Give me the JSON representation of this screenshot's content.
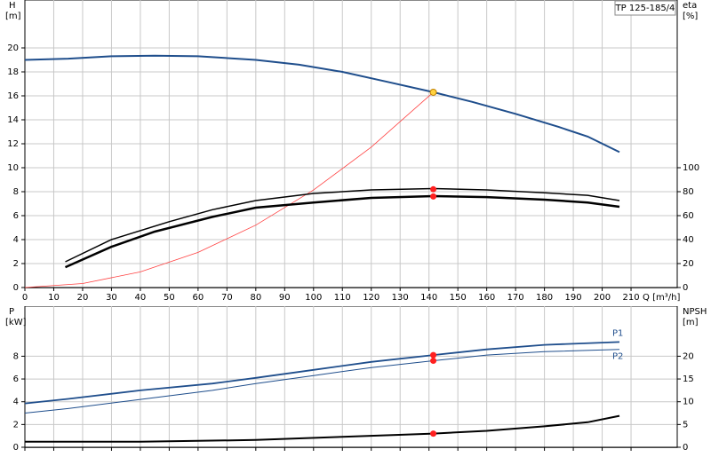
{
  "chart_data": [
    {
      "type": "line",
      "title": "TP 125-185/4",
      "ylabel": "H",
      "yunit": "[m]",
      "y2label": "eta",
      "y2unit": "[%]",
      "xlabel": "Q [m³/h]",
      "xlim": [
        0,
        226
      ],
      "xticks": [
        0,
        10,
        20,
        30,
        40,
        50,
        60,
        70,
        80,
        90,
        100,
        110,
        120,
        130,
        140,
        150,
        160,
        170,
        180,
        190,
        200,
        210
      ],
      "ylim": [
        0,
        24
      ],
      "yticks": [
        0,
        2,
        4,
        6,
        8,
        10,
        12,
        14,
        16,
        18,
        20
      ],
      "y2lim": [
        0,
        240
      ],
      "y2ticks": [
        0,
        20,
        40,
        60,
        80,
        100
      ],
      "grid": true,
      "xtick_labels": true,
      "series": [
        {
          "color": "#1f4e8c",
          "width": 2,
          "style": "line",
          "x": [
            0,
            15,
            30,
            45,
            60,
            80,
            95,
            110,
            125,
            141.5,
            155,
            170,
            185,
            195,
            206
          ],
          "values": [
            19.0,
            19.1,
            19.3,
            19.35,
            19.3,
            19.0,
            18.6,
            18.0,
            17.2,
            16.3,
            15.5,
            14.5,
            13.4,
            12.6,
            11.3
          ]
        },
        {
          "color": "#ff4040",
          "width": 0.8,
          "style": "line",
          "x": [
            0,
            20,
            40,
            60,
            80,
            100,
            120,
            141.5
          ],
          "values": [
            0,
            0.33,
            1.3,
            2.93,
            5.21,
            8.14,
            11.72,
            16.3
          ]
        },
        {
          "color": "#000000",
          "width": 1.5,
          "style": "line",
          "axis": "y2",
          "x": [
            14,
            30,
            50,
            65,
            80,
            100,
            120,
            141.5,
            160,
            180,
            195,
            206
          ],
          "values": [
            21.5,
            40,
            55,
            65,
            72.6,
            78.5,
            81.5,
            82.6,
            81.5,
            79,
            77,
            72.6
          ]
        },
        {
          "color": "#000000",
          "width": 2.5,
          "style": "line",
          "axis": "y2",
          "x": [
            14,
            30,
            45,
            65,
            80,
            100,
            120,
            141.5,
            160,
            180,
            195,
            206
          ],
          "values": [
            17,
            34,
            46.7,
            59,
            66.7,
            71,
            74.8,
            76.3,
            75.5,
            73.3,
            71,
            67.4
          ]
        },
        {
          "color": "#ffd23f",
          "style": "points",
          "x": [
            141.5
          ],
          "values": [
            16.3
          ]
        },
        {
          "color": "#ff2020",
          "style": "points",
          "axis": "y2",
          "x": [
            141.5,
            141.5
          ],
          "values": [
            82,
            76
          ]
        }
      ]
    },
    {
      "type": "line",
      "ylabel": "P",
      "yunit": "[kW]",
      "y2label": "NPSH",
      "y2unit": "[m]",
      "xlim": [
        0,
        226
      ],
      "xticks": [
        0,
        10,
        20,
        30,
        40,
        50,
        60,
        70,
        80,
        90,
        100,
        110,
        120,
        130,
        140,
        150,
        160,
        170,
        180,
        190,
        200,
        210
      ],
      "ylim": [
        0,
        12.4
      ],
      "yticks": [
        0,
        2,
        4,
        6,
        8
      ],
      "y2lim": [
        0,
        31
      ],
      "y2ticks": [
        0,
        5,
        10,
        15,
        20
      ],
      "grid": true,
      "xtick_labels": false,
      "series": [
        {
          "name": "P1",
          "color": "#1f4e8c",
          "width": 1.8,
          "style": "line",
          "x": [
            0,
            15,
            40,
            65,
            80,
            100,
            120,
            141.5,
            160,
            180,
            206
          ],
          "values": [
            3.85,
            4.25,
            5.0,
            5.6,
            6.1,
            6.8,
            7.5,
            8.1,
            8.6,
            9.0,
            9.25
          ]
        },
        {
          "name": "P2",
          "color": "#1f4e8c",
          "width": 1,
          "style": "line",
          "x": [
            0,
            15,
            40,
            65,
            80,
            100,
            120,
            141.5,
            160,
            180,
            206
          ],
          "values": [
            3.0,
            3.4,
            4.2,
            5.0,
            5.6,
            6.3,
            7.0,
            7.6,
            8.1,
            8.4,
            8.6
          ]
        },
        {
          "color": "#000000",
          "width": 2,
          "style": "line",
          "axis": "y2",
          "x": [
            0,
            40,
            80,
            110,
            141.5,
            160,
            180,
            195,
            206
          ],
          "values": [
            1.2,
            1.2,
            1.6,
            2.3,
            3.0,
            3.6,
            4.6,
            5.5,
            6.9
          ]
        },
        {
          "color": "#ff2020",
          "style": "points",
          "x": [
            141.5,
            141.5
          ],
          "values": [
            8.1,
            7.6
          ]
        },
        {
          "color": "#ff2020",
          "style": "points",
          "axis": "y2",
          "x": [
            141.5
          ],
          "values": [
            3.0
          ]
        }
      ]
    }
  ]
}
